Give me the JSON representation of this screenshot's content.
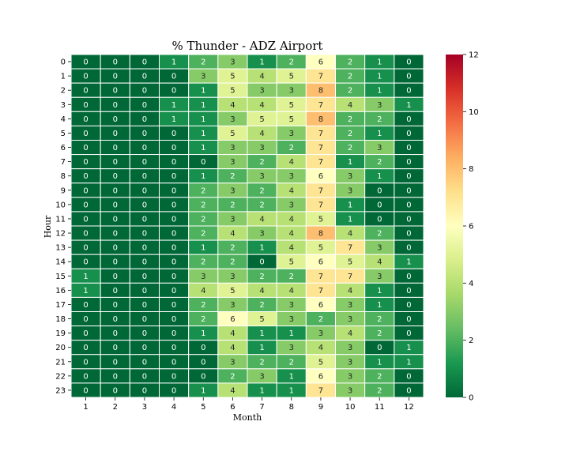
{
  "chart_data": {
    "type": "heatmap",
    "title": "% Thunder - ADZ Airport",
    "xlabel": "Month",
    "ylabel": "Hour",
    "x_categories": [
      "1",
      "2",
      "3",
      "4",
      "5",
      "6",
      "7",
      "8",
      "9",
      "10",
      "11",
      "12"
    ],
    "y_categories": [
      "0",
      "1",
      "2",
      "3",
      "4",
      "5",
      "6",
      "7",
      "8",
      "9",
      "10",
      "11",
      "12",
      "13",
      "14",
      "15",
      "16",
      "17",
      "18",
      "19",
      "20",
      "21",
      "22",
      "23"
    ],
    "values": [
      [
        0,
        0,
        0,
        1,
        2,
        3,
        1,
        2,
        6,
        2,
        1,
        0
      ],
      [
        0,
        0,
        0,
        0,
        3,
        5,
        4,
        5,
        7,
        2,
        1,
        0
      ],
      [
        0,
        0,
        0,
        0,
        1,
        5,
        3,
        3,
        8,
        2,
        1,
        0
      ],
      [
        0,
        0,
        0,
        1,
        1,
        4,
        4,
        5,
        7,
        4,
        3,
        1
      ],
      [
        0,
        0,
        0,
        1,
        1,
        3,
        5,
        5,
        8,
        2,
        2,
        0
      ],
      [
        0,
        0,
        0,
        0,
        1,
        5,
        4,
        3,
        7,
        2,
        1,
        0
      ],
      [
        0,
        0,
        0,
        0,
        1,
        3,
        3,
        2,
        7,
        2,
        3,
        0
      ],
      [
        0,
        0,
        0,
        0,
        0,
        3,
        2,
        4,
        7,
        1,
        2,
        0
      ],
      [
        0,
        0,
        0,
        0,
        1,
        2,
        3,
        3,
        6,
        3,
        1,
        0
      ],
      [
        0,
        0,
        0,
        0,
        2,
        3,
        2,
        4,
        7,
        3,
        0,
        0
      ],
      [
        0,
        0,
        0,
        0,
        2,
        2,
        2,
        3,
        7,
        1,
        0,
        0
      ],
      [
        0,
        0,
        0,
        0,
        2,
        3,
        4,
        4,
        5,
        1,
        0,
        0
      ],
      [
        0,
        0,
        0,
        0,
        2,
        4,
        3,
        4,
        8,
        4,
        2,
        0
      ],
      [
        0,
        0,
        0,
        0,
        1,
        2,
        1,
        4,
        5,
        7,
        3,
        0
      ],
      [
        0,
        0,
        0,
        0,
        2,
        2,
        0,
        5,
        6,
        5,
        4,
        1
      ],
      [
        1,
        0,
        0,
        0,
        3,
        3,
        2,
        2,
        7,
        7,
        3,
        0
      ],
      [
        1,
        0,
        0,
        0,
        4,
        5,
        4,
        4,
        7,
        4,
        1,
        0
      ],
      [
        0,
        0,
        0,
        0,
        2,
        3,
        2,
        3,
        6,
        3,
        1,
        0
      ],
      [
        0,
        0,
        0,
        0,
        2,
        6,
        5,
        3,
        2,
        3,
        2,
        0
      ],
      [
        0,
        0,
        0,
        0,
        1,
        4,
        1,
        1,
        3,
        4,
        2,
        0
      ],
      [
        0,
        0,
        0,
        0,
        0,
        4,
        1,
        3,
        4,
        3,
        0,
        1
      ],
      [
        0,
        0,
        0,
        0,
        0,
        3,
        2,
        2,
        5,
        3,
        1,
        1
      ],
      [
        0,
        0,
        0,
        0,
        0,
        2,
        3,
        1,
        6,
        3,
        2,
        0
      ],
      [
        0,
        0,
        0,
        0,
        1,
        4,
        1,
        1,
        7,
        3,
        2,
        0
      ]
    ],
    "colorbar": {
      "min": 0,
      "max": 12,
      "ticks": [
        "0",
        "2",
        "4",
        "6",
        "8",
        "10",
        "12"
      ],
      "colormap": "RdYlGn_r"
    },
    "annotated": true,
    "legend": "colorbar right"
  }
}
